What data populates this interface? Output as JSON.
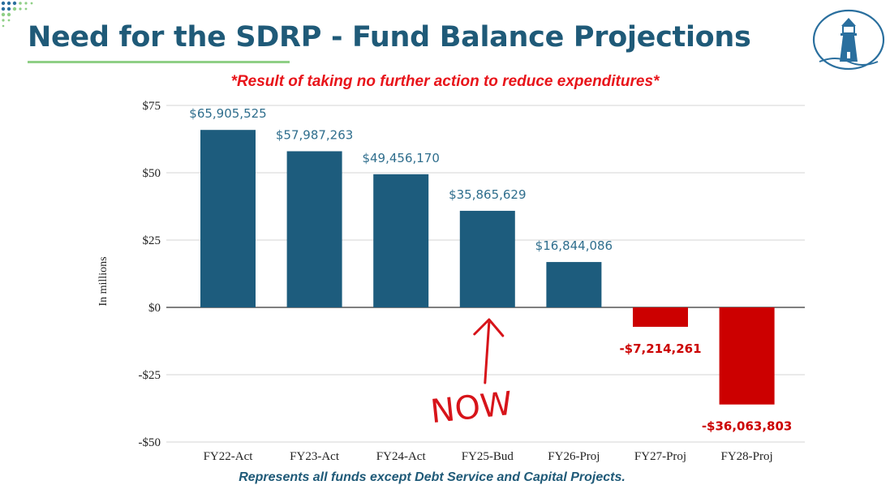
{
  "header": {
    "title": "Need for the SDRP - Fund Balance Projections"
  },
  "logo": {
    "name": "lighthouse-logo"
  },
  "colors": {
    "title": "#1f5a78",
    "underline": "#8fcf86",
    "positive_bar": "#1d5c7d",
    "negative_bar": "#cc0000",
    "subtitle": "#e8141a",
    "annotation": "#d7141a"
  },
  "chart_data": {
    "type": "bar",
    "title": "*Result of taking no further action to reduce expenditures*",
    "footnote": "Represents all funds except Debt Service and Capital Projects.",
    "xlabel": "",
    "ylabel": "In millions",
    "ylim": [
      -50,
      75
    ],
    "yticks": [
      75,
      50,
      25,
      0,
      -25,
      -50
    ],
    "ytick_labels": [
      "$75",
      "$50",
      "$25",
      "$0",
      "-$25",
      "-$50"
    ],
    "grid": true,
    "categories": [
      "FY22-Act",
      "FY23-Act",
      "FY24-Act",
      "FY25-Bud",
      "FY26-Proj",
      "FY27-Proj",
      "FY28-Proj"
    ],
    "values": [
      65.905525,
      57.987263,
      49.45617,
      35.865629,
      16.844086,
      -7.214261,
      -36.063803
    ],
    "data_labels": [
      "$65,905,525",
      "$57,987,263",
      "$49,456,170",
      "$35,865,629",
      "$16,844,086",
      "-$7,214,261",
      "-$36,063,803"
    ],
    "annotation": {
      "text": "NOW",
      "category": "FY25-Bud"
    }
  }
}
